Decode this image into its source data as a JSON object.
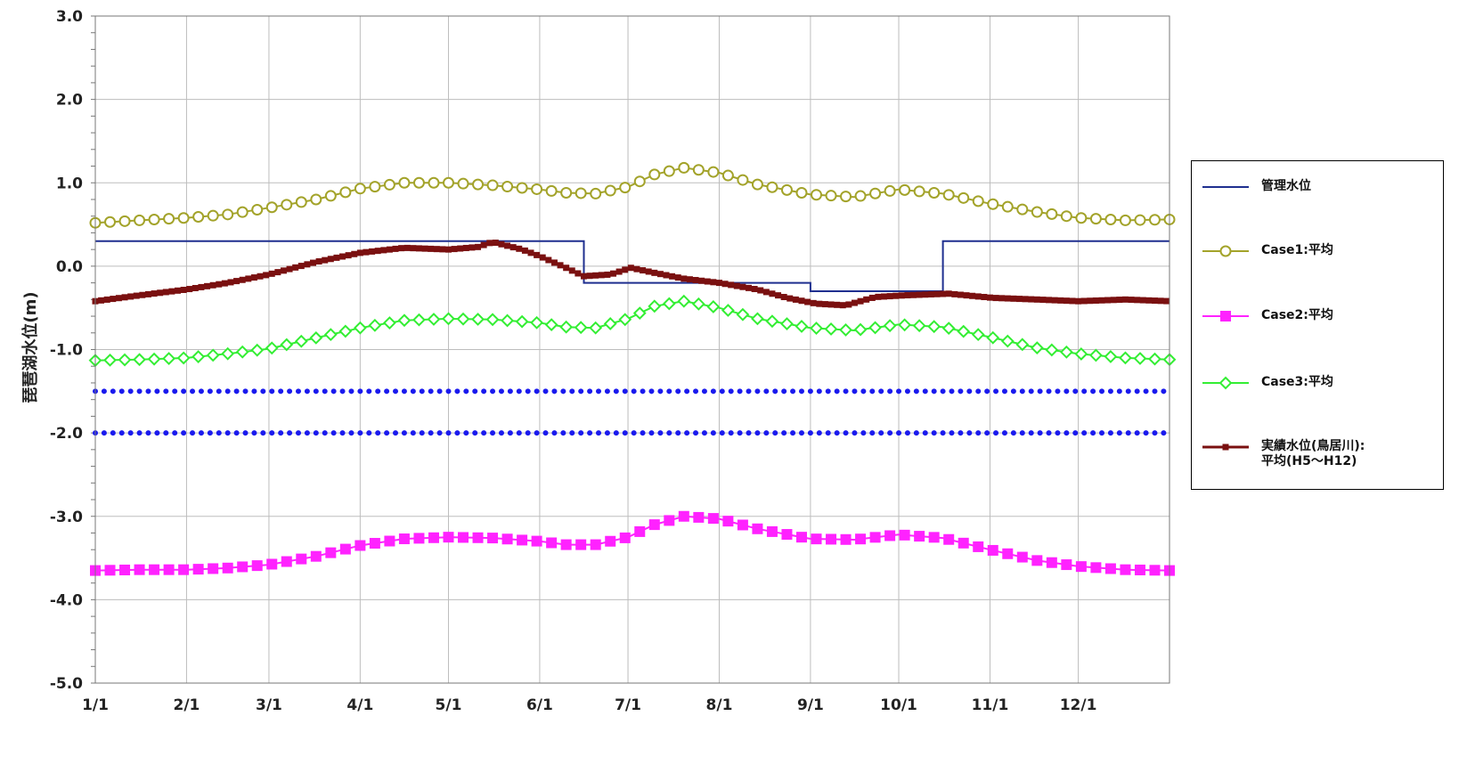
{
  "chart_data": {
    "type": "line",
    "title": "",
    "xlabel": "",
    "ylabel": "琵琶湖水位(m)",
    "ylim": [
      -5.0,
      3.0
    ],
    "yticks": [
      "3.0",
      "2.0",
      "1.0",
      "0.0",
      "-1.0",
      "-2.0",
      "-3.0",
      "-4.0",
      "-5.0"
    ],
    "xlim": [
      0,
      365
    ],
    "xticks": [
      {
        "label": "1/1",
        "day": 0
      },
      {
        "label": "2/1",
        "day": 31
      },
      {
        "label": "3/1",
        "day": 59
      },
      {
        "label": "4/1",
        "day": 90
      },
      {
        "label": "5/1",
        "day": 120
      },
      {
        "label": "6/1",
        "day": 151
      },
      {
        "label": "7/1",
        "day": 181
      },
      {
        "label": "8/1",
        "day": 212
      },
      {
        "label": "9/1",
        "day": 243
      },
      {
        "label": "10/1",
        "day": 273
      },
      {
        "label": "11/1",
        "day": 304
      },
      {
        "label": "12/1",
        "day": 334
      }
    ],
    "grid": true,
    "legend_position": "right",
    "series": [
      {
        "name": "管理水位",
        "color": "#1f2f8f",
        "marker": "none",
        "style": "step",
        "x": [
          0,
          166,
          166,
          243,
          243,
          288,
          288,
          365
        ],
        "y": [
          0.3,
          0.3,
          -0.2,
          -0.2,
          -0.3,
          -0.3,
          0.3,
          0.3
        ]
      },
      {
        "name": "Case1:平均",
        "color": "#a3a32a",
        "marker": "circle",
        "x": [
          0,
          15,
          31,
          45,
          59,
          75,
          90,
          105,
          120,
          135,
          151,
          160,
          170,
          181,
          190,
          200,
          212,
          225,
          243,
          258,
          273,
          288,
          304,
          320,
          334,
          350,
          365
        ],
        "y": [
          0.52,
          0.55,
          0.58,
          0.62,
          0.7,
          0.8,
          0.93,
          1.0,
          1.0,
          0.97,
          0.92,
          0.88,
          0.87,
          0.95,
          1.1,
          1.18,
          1.12,
          0.98,
          0.86,
          0.83,
          0.92,
          0.87,
          0.75,
          0.65,
          0.58,
          0.55,
          0.56
        ]
      },
      {
        "name": "Case2:平均",
        "color": "#ff22ff",
        "marker": "square",
        "x": [
          0,
          15,
          31,
          45,
          59,
          75,
          90,
          105,
          120,
          135,
          151,
          160,
          170,
          181,
          190,
          200,
          212,
          225,
          243,
          258,
          273,
          288,
          304,
          320,
          334,
          350,
          365
        ],
        "y": [
          -3.65,
          -3.64,
          -3.64,
          -3.62,
          -3.58,
          -3.48,
          -3.35,
          -3.27,
          -3.25,
          -3.26,
          -3.3,
          -3.34,
          -3.34,
          -3.25,
          -3.1,
          -3.0,
          -3.03,
          -3.15,
          -3.27,
          -3.28,
          -3.22,
          -3.26,
          -3.4,
          -3.53,
          -3.6,
          -3.64,
          -3.65
        ]
      },
      {
        "name": "Case3:平均",
        "color": "#33ee33",
        "marker": "diamond",
        "x": [
          0,
          15,
          31,
          45,
          59,
          75,
          90,
          105,
          120,
          135,
          151,
          160,
          170,
          181,
          190,
          200,
          212,
          225,
          243,
          258,
          273,
          288,
          304,
          320,
          334,
          350,
          365
        ],
        "y": [
          -1.13,
          -1.12,
          -1.1,
          -1.05,
          -0.99,
          -0.86,
          -0.74,
          -0.65,
          -0.63,
          -0.64,
          -0.68,
          -0.73,
          -0.74,
          -0.63,
          -0.48,
          -0.42,
          -0.5,
          -0.63,
          -0.74,
          -0.77,
          -0.7,
          -0.73,
          -0.85,
          -0.98,
          -1.05,
          -1.1,
          -1.12
        ]
      },
      {
        "name": "実績水位(鳥居川):\n平均(H5～H12)",
        "color": "#7a1010",
        "marker": "small-square",
        "x": [
          0,
          15,
          31,
          45,
          59,
          75,
          90,
          105,
          120,
          130,
          135,
          145,
          151,
          160,
          166,
          175,
          182,
          190,
          200,
          212,
          225,
          235,
          245,
          255,
          265,
          275,
          290,
          305,
          320,
          334,
          350,
          365
        ],
        "y": [
          -0.42,
          -0.35,
          -0.28,
          -0.2,
          -0.1,
          0.05,
          0.16,
          0.22,
          0.2,
          0.23,
          0.29,
          0.2,
          0.12,
          -0.02,
          -0.12,
          -0.1,
          -0.02,
          -0.08,
          -0.15,
          -0.2,
          -0.28,
          -0.38,
          -0.45,
          -0.47,
          -0.37,
          -0.35,
          -0.33,
          -0.38,
          -0.4,
          -0.42,
          -0.4,
          -0.42
        ]
      },
      {
        "name": "",
        "color": "#1a1aee",
        "marker": "dot",
        "style": "dotted",
        "x": [
          0,
          365
        ],
        "y": [
          -1.5,
          -1.5
        ]
      },
      {
        "name": "",
        "color": "#1a1aee",
        "marker": "dot",
        "style": "dotted",
        "x": [
          0,
          365
        ],
        "y": [
          -2.0,
          -2.0
        ]
      }
    ]
  },
  "legend": {
    "items": [
      {
        "label": "管理水位",
        "color": "#1f2f8f",
        "marker": "none"
      },
      {
        "label": "Case1:平均",
        "color": "#a3a32a",
        "marker": "circle"
      },
      {
        "label": "Case2:平均",
        "color": "#ff22ff",
        "marker": "square"
      },
      {
        "label": "Case3:平均",
        "color": "#33ee33",
        "marker": "diamond"
      },
      {
        "label": "実績水位(鳥居川):\n平均(H5～H12)",
        "color": "#7a1010",
        "marker": "small-square"
      }
    ]
  }
}
